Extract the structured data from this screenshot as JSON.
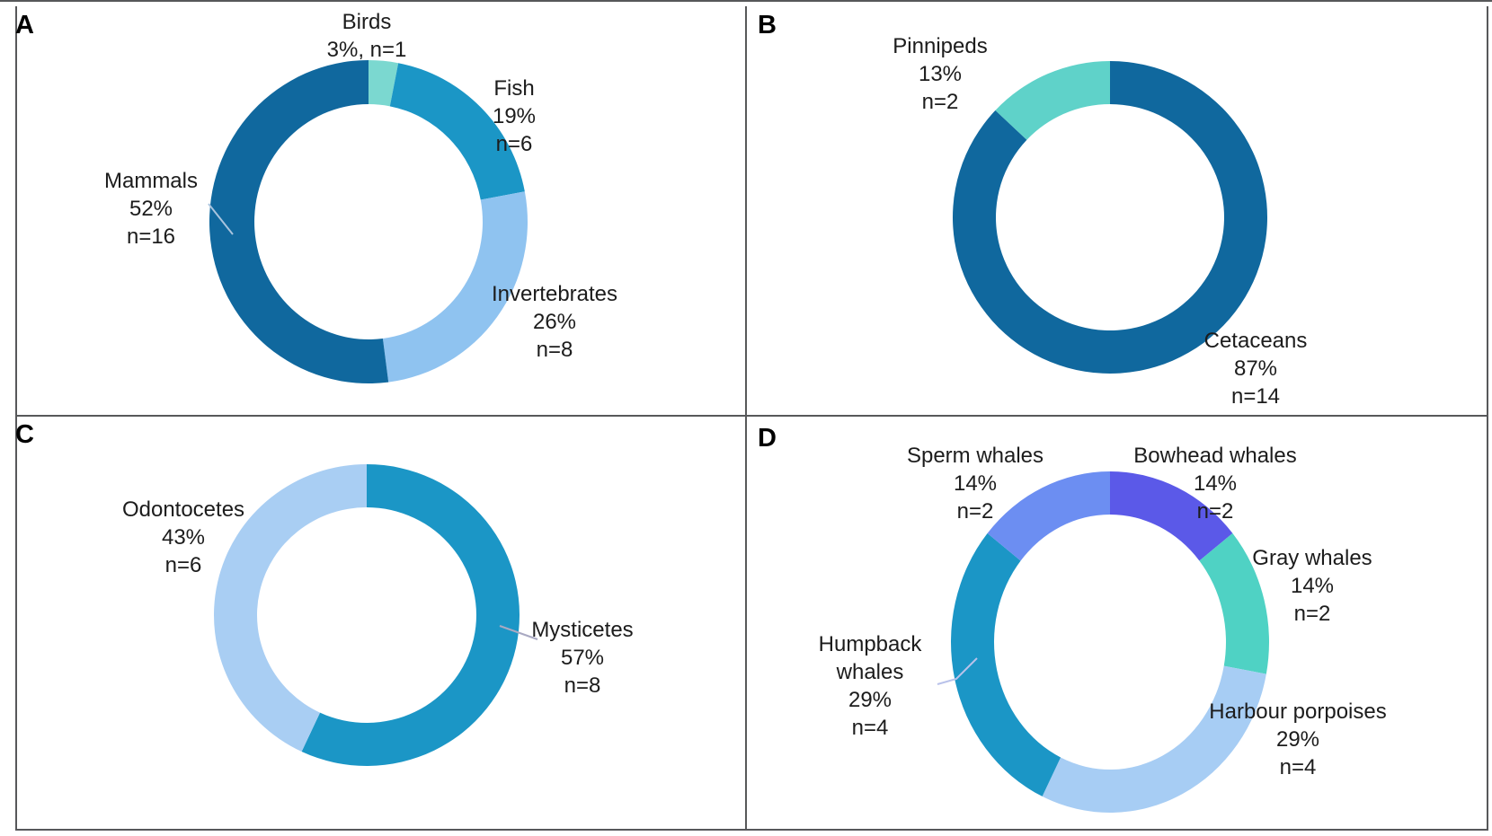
{
  "chart_data": [
    {
      "panel": "A",
      "type": "pie",
      "subtype": "donut",
      "unit": "percent",
      "legend_position": "around-slices",
      "slices": [
        {
          "label": "Birds",
          "pct": 3,
          "n": 1,
          "color": "#7BD8D0",
          "lines": [
            "Birds",
            "3%, n=1"
          ]
        },
        {
          "label": "Fish",
          "pct": 19,
          "n": 6,
          "color": "#1B96C6",
          "lines": [
            "Fish",
            "19%",
            "n=6"
          ]
        },
        {
          "label": "Invertebrates",
          "pct": 26,
          "n": 8,
          "color": "#8FC3F0",
          "lines": [
            "Invertebrates",
            "26%",
            "n=8"
          ]
        },
        {
          "label": "Mammals",
          "pct": 52,
          "n": 16,
          "color": "#10689E",
          "lines": [
            "Mammals",
            "52%",
            "n=16"
          ]
        }
      ]
    },
    {
      "panel": "B",
      "type": "pie",
      "subtype": "donut",
      "unit": "percent",
      "legend_position": "around-slices",
      "slices": [
        {
          "label": "Cetaceans",
          "pct": 87,
          "n": 14,
          "color": "#10689E",
          "lines": [
            "Cetaceans",
            "87%",
            "n=14"
          ]
        },
        {
          "label": "Pinnipeds",
          "pct": 13,
          "n": 2,
          "color": "#5FD2C9",
          "lines": [
            "Pinnipeds",
            "13%",
            "n=2"
          ]
        }
      ]
    },
    {
      "panel": "C",
      "type": "pie",
      "subtype": "donut",
      "unit": "percent",
      "legend_position": "around-slices",
      "slices": [
        {
          "label": "Mysticetes",
          "pct": 57,
          "n": 8,
          "color": "#1B96C6",
          "lines": [
            "Mysticetes",
            "57%",
            "n=8"
          ]
        },
        {
          "label": "Odontocetes",
          "pct": 43,
          "n": 6,
          "color": "#A9CEF3",
          "lines": [
            "Odontocetes",
            "43%",
            "n=6"
          ]
        }
      ]
    },
    {
      "panel": "D",
      "type": "pie",
      "subtype": "donut",
      "unit": "percent",
      "legend_position": "around-slices",
      "slices": [
        {
          "label": "Bowhead whales",
          "pct": 14,
          "n": 2,
          "color": "#5B59E8",
          "lines": [
            "Bowhead whales",
            "14%",
            "n=2"
          ]
        },
        {
          "label": "Gray whales",
          "pct": 14,
          "n": 2,
          "color": "#4FD2C4",
          "lines": [
            "Gray whales",
            "14%",
            "n=2"
          ]
        },
        {
          "label": "Harbour porpoises",
          "pct": 29,
          "n": 4,
          "color": "#A7CDF4",
          "lines": [
            "Harbour porpoises",
            "29%",
            "n=4"
          ]
        },
        {
          "label": "Humpback whales",
          "pct": 29,
          "n": 4,
          "color": "#1B96C6",
          "lines": [
            "Humpback",
            "whales",
            "29%",
            "n=4"
          ]
        },
        {
          "label": "Sperm whales",
          "pct": 14,
          "n": 2,
          "color": "#6C8EF2",
          "lines": [
            "Sperm whales",
            "14%",
            "n=2"
          ]
        }
      ]
    }
  ]
}
